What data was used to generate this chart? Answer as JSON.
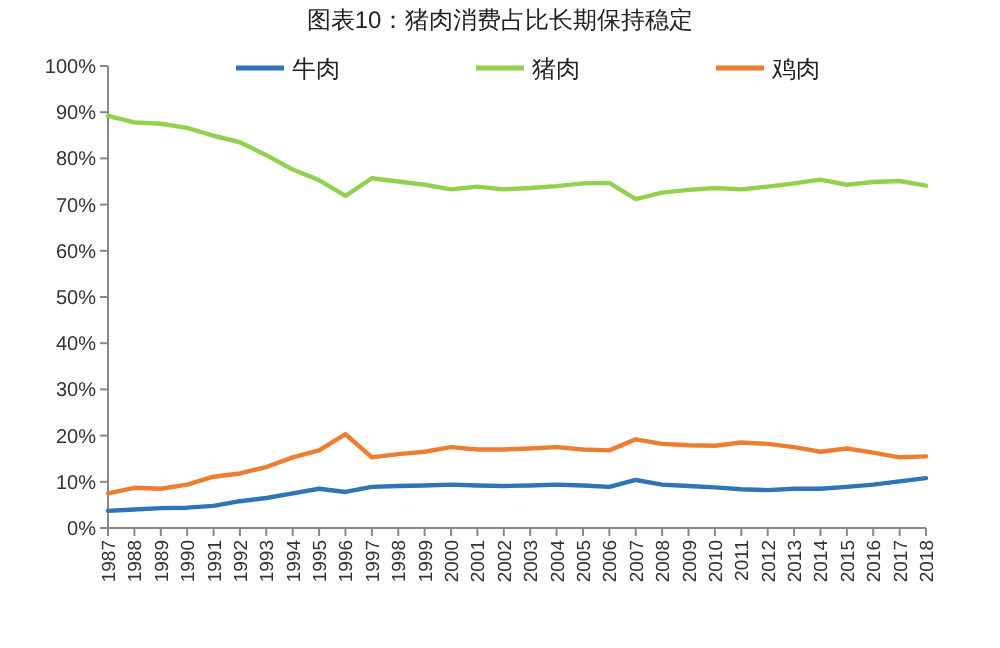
{
  "chart_data": {
    "type": "line",
    "title": "图表10：猪肉消费占比长期保持稳定",
    "categories": [
      "1987",
      "1988",
      "1989",
      "1990",
      "1991",
      "1992",
      "1993",
      "1994",
      "1995",
      "1996",
      "1997",
      "1998",
      "1999",
      "2000",
      "2001",
      "2002",
      "2003",
      "2004",
      "2005",
      "2006",
      "2007",
      "2008",
      "2009",
      "2010",
      "2011",
      "2012",
      "2013",
      "2014",
      "2015",
      "2016",
      "2017",
      "2018"
    ],
    "series": [
      {
        "name": "牛肉",
        "color": "#2e75b6",
        "values": [
          3.7,
          4.0,
          4.3,
          4.4,
          4.8,
          5.8,
          6.5,
          7.5,
          8.5,
          7.8,
          8.9,
          9.1,
          9.2,
          9.4,
          9.2,
          9.1,
          9.2,
          9.4,
          9.2,
          8.9,
          10.4,
          9.4,
          9.1,
          8.8,
          8.4,
          8.2,
          8.5,
          8.5,
          8.9,
          9.4,
          10.1,
          10.8
        ]
      },
      {
        "name": "猪肉",
        "color": "#92d050",
        "values": [
          89.2,
          87.8,
          87.5,
          86.6,
          84.9,
          83.5,
          80.7,
          77.6,
          75.3,
          71.9,
          75.7,
          75.0,
          74.3,
          73.3,
          73.9,
          73.3,
          73.6,
          74.0,
          74.6,
          74.7,
          71.2,
          72.6,
          73.2,
          73.6,
          73.3,
          73.9,
          74.6,
          75.4,
          74.3,
          74.9,
          75.1,
          74.1
        ]
      },
      {
        "name": "鸡肉",
        "color": "#ed7d31",
        "values": [
          7.5,
          8.7,
          8.5,
          9.4,
          11.1,
          11.8,
          13.2,
          15.3,
          16.8,
          20.3,
          15.3,
          16.0,
          16.5,
          17.5,
          17.0,
          17.0,
          17.2,
          17.5,
          17.0,
          16.8,
          19.2,
          18.2,
          17.9,
          17.8,
          18.5,
          18.2,
          17.5,
          16.5,
          17.2,
          16.3,
          15.3,
          15.5
        ]
      }
    ],
    "ylim": [
      0,
      100
    ],
    "yticks": [
      {
        "value": 0,
        "label": "0%"
      },
      {
        "value": 10,
        "label": "10%"
      },
      {
        "value": 20,
        "label": "20%"
      },
      {
        "value": 30,
        "label": "30%"
      },
      {
        "value": 40,
        "label": "40%"
      },
      {
        "value": 50,
        "label": "50%"
      },
      {
        "value": 60,
        "label": "60%"
      },
      {
        "value": 70,
        "label": "70%"
      },
      {
        "value": 80,
        "label": "80%"
      },
      {
        "value": 90,
        "label": "90%"
      },
      {
        "value": 100,
        "label": "100%"
      }
    ],
    "legend": "top",
    "grid": false
  }
}
